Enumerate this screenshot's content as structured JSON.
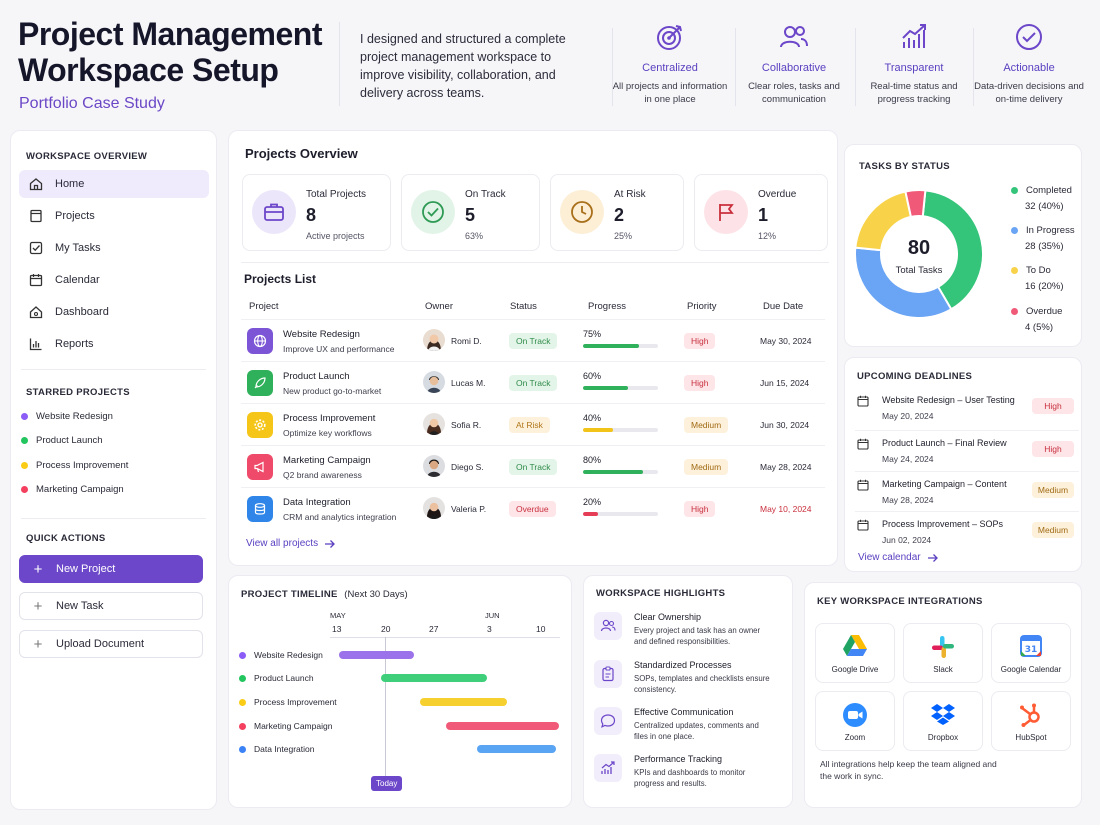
{
  "header": {
    "title": "Project Management Workspace Setup",
    "subtitle": "Portfolio Case Study",
    "intro": "I designed and structured a complete project management workspace to improve visibility, collaboration, and delivery across teams.",
    "pillars": [
      {
        "title": "Centralized",
        "desc": "All projects and information in one place",
        "icon": "target-icon"
      },
      {
        "title": "Collaborative",
        "desc": "Clear roles, tasks and communication",
        "icon": "users-icon"
      },
      {
        "title": "Transparent",
        "desc": "Real-time status and progress tracking",
        "icon": "chart-trend-icon"
      },
      {
        "title": "Actionable",
        "desc": "Data-driven decisions and on-time delivery",
        "icon": "check-circle-icon"
      }
    ]
  },
  "sidebar": {
    "overview_label": "WORKSPACE OVERVIEW",
    "nav": [
      {
        "label": "Home",
        "icon": "home-icon"
      },
      {
        "label": "Projects",
        "icon": "folder-icon"
      },
      {
        "label": "My Tasks",
        "icon": "checkbox-icon"
      },
      {
        "label": "Calendar",
        "icon": "calendar-icon"
      },
      {
        "label": "Dashboard",
        "icon": "dashboard-icon"
      },
      {
        "label": "Reports",
        "icon": "bar-chart-icon"
      }
    ],
    "starred_label": "STARRED PROJECTS",
    "starred": [
      {
        "label": "Website Redesign",
        "color": "#8b5cf6"
      },
      {
        "label": "Product Launch",
        "color": "#22c55e"
      },
      {
        "label": "Process Improvement",
        "color": "#facc15"
      },
      {
        "label": "Marketing Campaign",
        "color": "#f43f5e"
      }
    ],
    "quick_label": "QUICK ACTIONS",
    "quick": [
      {
        "label": "New Project"
      },
      {
        "label": "New Task"
      },
      {
        "label": "Upload Document"
      }
    ]
  },
  "overview": {
    "title": "Projects Overview",
    "stats": [
      {
        "label": "Total Projects",
        "value": "8",
        "sub": "Active projects",
        "icon": "briefcase-icon"
      },
      {
        "label": "On Track",
        "value": "5",
        "sub": "63%",
        "icon": "check-icon"
      },
      {
        "label": "At Risk",
        "value": "2",
        "sub": "25%",
        "icon": "clock-icon"
      },
      {
        "label": "Overdue",
        "value": "1",
        "sub": "12%",
        "icon": "flag-icon"
      }
    ],
    "list_title": "Projects List",
    "columns": [
      "Project",
      "Owner",
      "Status",
      "Progress",
      "Priority",
      "Due Date"
    ],
    "rows": [
      {
        "name": "Website Redesign",
        "desc": "Improve UX and performance",
        "owner": "Romi D.",
        "status": "On Track",
        "progress_label": "75%",
        "progress": 0.75,
        "priority": "High",
        "due": "May 30, 2024",
        "icon": "globe-icon"
      },
      {
        "name": "Product Launch",
        "desc": "New product go-to-market",
        "owner": "Lucas M.",
        "status": "On Track",
        "progress_label": "60%",
        "progress": 0.6,
        "priority": "High",
        "due": "Jun 15, 2024",
        "icon": "rocket-icon"
      },
      {
        "name": "Process Improvement",
        "desc": "Optimize key workflows",
        "owner": "Sofia R.",
        "status": "At Risk",
        "progress_label": "40%",
        "progress": 0.4,
        "priority": "Medium",
        "due": "Jun 30, 2024",
        "icon": "gear-icon"
      },
      {
        "name": "Marketing Campaign",
        "desc": "Q2 brand awareness",
        "owner": "Diego S.",
        "status": "On Track",
        "progress_label": "80%",
        "progress": 0.8,
        "priority": "Medium",
        "due": "May 28, 2024",
        "icon": "megaphone-icon"
      },
      {
        "name": "Data Integration",
        "desc": "CRM and analytics integration",
        "owner": "Valeria P.",
        "status": "Overdue",
        "progress_label": "20%",
        "progress": 0.2,
        "priority": "High",
        "due": "May 10, 2024",
        "icon": "database-icon"
      }
    ],
    "view_all": "View all projects"
  },
  "tasks_status": {
    "title": "TASKS BY STATUS",
    "total": "80",
    "total_label": "Total Tasks",
    "segments": [
      {
        "label": "Completed",
        "value": 32,
        "pct": "32 (40%)",
        "color": "#34c47a"
      },
      {
        "label": "In Progress",
        "value": 28,
        "pct": "28 (35%)",
        "color": "#6aa4f4"
      },
      {
        "label": "To Do",
        "value": 16,
        "pct": "16 (20%)",
        "color": "#f8d34a"
      },
      {
        "label": "Overdue",
        "value": 4,
        "pct": "4 (5%)",
        "color": "#f05a78"
      }
    ]
  },
  "deadlines": {
    "title": "UPCOMING DEADLINES",
    "items": [
      {
        "title": "Website Redesign – User Testing",
        "date": "May 20, 2024",
        "priority": "High"
      },
      {
        "title": "Product Launch – Final Review",
        "date": "May 24, 2024",
        "priority": "High"
      },
      {
        "title": "Marketing Campaign – Content",
        "date": "May 28, 2024",
        "priority": "Medium"
      },
      {
        "title": "Process Improvement – SOPs",
        "date": "Jun 02, 2024",
        "priority": "Medium"
      }
    ],
    "view_calendar": "View calendar"
  },
  "timeline": {
    "title": "PROJECT TIMELINE",
    "range": "(Next 30 Days)",
    "months": [
      "MAY",
      "JUN"
    ],
    "ticks": [
      "13",
      "20",
      "27",
      "3",
      "10"
    ],
    "today_label": "Today",
    "rows": [
      {
        "label": "Website Redesign",
        "color": "#8b5cf6"
      },
      {
        "label": "Product Launch",
        "color": "#3fcf7a"
      },
      {
        "label": "Process Improvement",
        "color": "#f6d02f"
      },
      {
        "label": "Marketing Campaign",
        "color": "#f05a78"
      },
      {
        "label": "Data Integration",
        "color": "#5aa4f4"
      }
    ]
  },
  "highlights": {
    "title": "WORKSPACE HIGHLIGHTS",
    "items": [
      {
        "title": "Clear Ownership",
        "desc": "Every project and task has an owner and defined responsibilities.",
        "icon": "people-icon"
      },
      {
        "title": "Standardized Processes",
        "desc": "SOPs, templates and checklists ensure consistency.",
        "icon": "clipboard-icon"
      },
      {
        "title": "Effective Communication",
        "desc": "Centralized updates, comments and files in one place.",
        "icon": "chat-icon"
      },
      {
        "title": "Performance Tracking",
        "desc": "KPIs and dashboards to monitor progress and results.",
        "icon": "trend-icon"
      }
    ]
  },
  "integrations": {
    "title": "KEY WORKSPACE INTEGRATIONS",
    "items": [
      {
        "name": "Google Drive",
        "icon": "google-drive-icon"
      },
      {
        "name": "Slack",
        "icon": "slack-icon"
      },
      {
        "name": "Google Calendar",
        "icon": "google-calendar-icon"
      },
      {
        "name": "Zoom",
        "icon": "zoom-icon"
      },
      {
        "name": "Dropbox",
        "icon": "dropbox-icon"
      },
      {
        "name": "HubSpot",
        "icon": "hubspot-icon"
      }
    ],
    "note": "All integrations help keep the team aligned and the work in sync."
  }
}
